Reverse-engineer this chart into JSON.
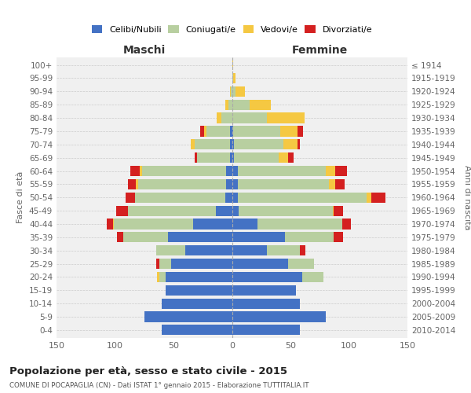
{
  "age_groups": [
    "0-4",
    "5-9",
    "10-14",
    "15-19",
    "20-24",
    "25-29",
    "30-34",
    "35-39",
    "40-44",
    "45-49",
    "50-54",
    "55-59",
    "60-64",
    "65-69",
    "70-74",
    "75-79",
    "80-84",
    "85-89",
    "90-94",
    "95-99",
    "100+"
  ],
  "birth_years": [
    "2010-2014",
    "2005-2009",
    "2000-2004",
    "1995-1999",
    "1990-1994",
    "1985-1989",
    "1980-1984",
    "1975-1979",
    "1970-1974",
    "1965-1969",
    "1960-1964",
    "1955-1959",
    "1950-1954",
    "1945-1949",
    "1940-1944",
    "1935-1939",
    "1930-1934",
    "1925-1929",
    "1920-1924",
    "1915-1919",
    "≤ 1914"
  ],
  "male": {
    "celibi": [
      60,
      75,
      60,
      57,
      57,
      52,
      40,
      55,
      33,
      14,
      6,
      5,
      5,
      2,
      2,
      2,
      0,
      0,
      0,
      0,
      0
    ],
    "coniugati": [
      0,
      0,
      0,
      0,
      5,
      10,
      25,
      38,
      68,
      75,
      77,
      75,
      72,
      28,
      30,
      20,
      9,
      3,
      1,
      0,
      0
    ],
    "vedovi": [
      0,
      0,
      0,
      0,
      2,
      0,
      0,
      0,
      1,
      0,
      0,
      2,
      2,
      0,
      3,
      2,
      4,
      3,
      1,
      0,
      0
    ],
    "divorziati": [
      0,
      0,
      0,
      0,
      0,
      3,
      0,
      5,
      5,
      10,
      8,
      7,
      8,
      2,
      0,
      3,
      0,
      0,
      0,
      0,
      0
    ]
  },
  "female": {
    "nubili": [
      58,
      80,
      58,
      55,
      60,
      48,
      30,
      45,
      22,
      6,
      5,
      5,
      5,
      2,
      2,
      1,
      0,
      0,
      0,
      0,
      0
    ],
    "coniugate": [
      0,
      0,
      0,
      0,
      18,
      22,
      28,
      42,
      72,
      80,
      110,
      78,
      75,
      38,
      42,
      40,
      30,
      15,
      3,
      1,
      0
    ],
    "vedove": [
      0,
      0,
      0,
      0,
      0,
      0,
      0,
      0,
      0,
      1,
      4,
      5,
      8,
      8,
      12,
      15,
      32,
      18,
      8,
      2,
      1
    ],
    "divorziate": [
      0,
      0,
      0,
      0,
      0,
      0,
      5,
      8,
      8,
      8,
      12,
      8,
      10,
      5,
      2,
      5,
      0,
      0,
      0,
      0,
      0
    ]
  },
  "colors": {
    "celibi_nubili": "#4472c4",
    "coniugati_e": "#b8cfa0",
    "vedovi_e": "#f5c842",
    "divorziati_e": "#d42020"
  },
  "xlim": 150,
  "title": "Popolazione per età, sesso e stato civile - 2015",
  "subtitle": "COMUNE DI POCAPAGLIA (CN) - Dati ISTAT 1° gennaio 2015 - Elaborazione TUTTITALIA.IT",
  "ylabel_left": "Fasce di età",
  "ylabel_right": "Anni di nascita",
  "xlabel_left": "Maschi",
  "xlabel_right": "Femmine",
  "bg_color": "#ffffff",
  "grid_color": "#cccccc"
}
